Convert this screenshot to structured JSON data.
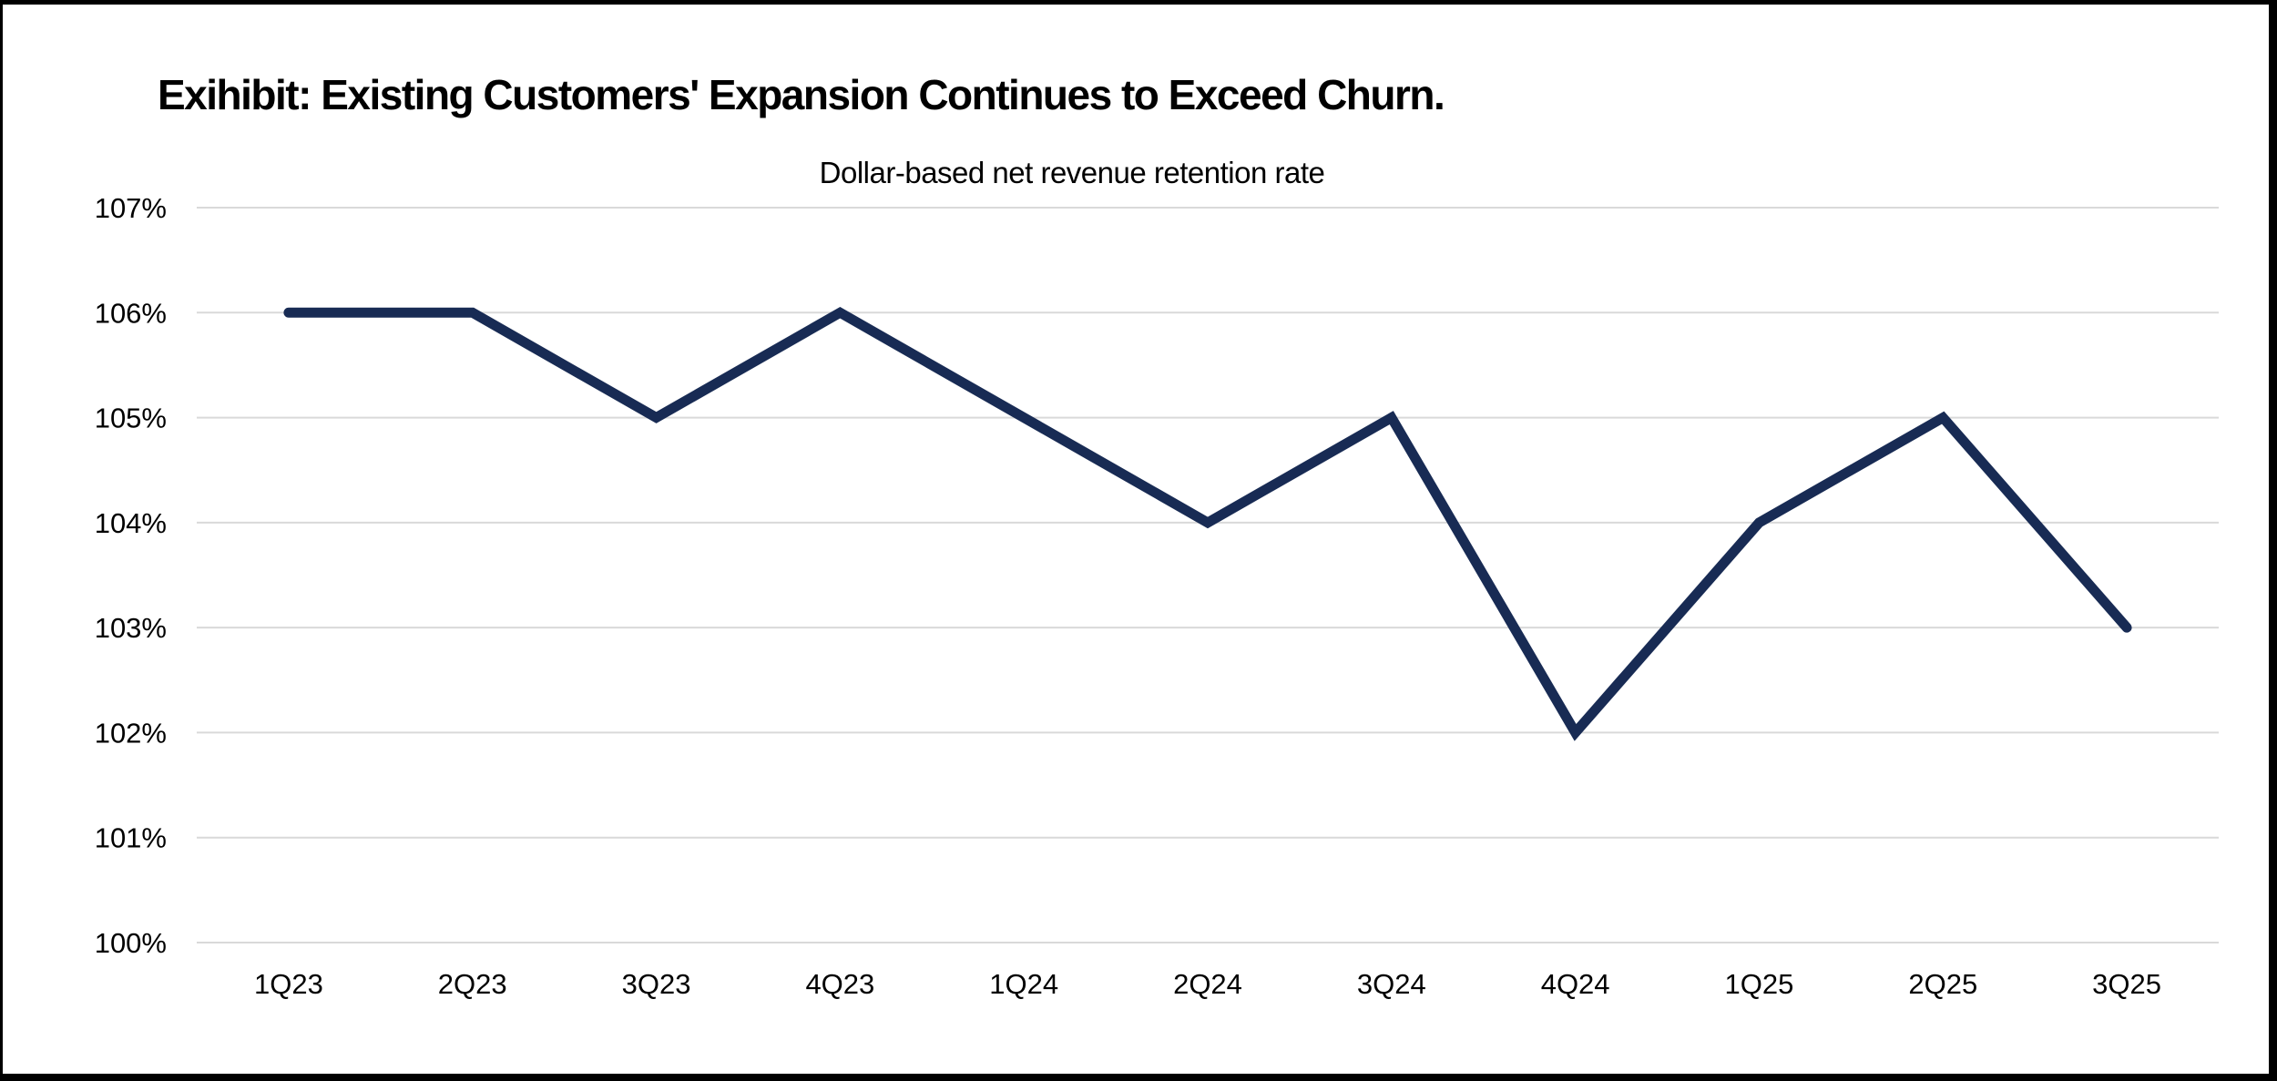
{
  "frame": {
    "background": "#FFFFFF",
    "border_color": "#000000"
  },
  "header": {
    "title": "Exihibit: Existing Customers' Expansion Continues to Exceed Churn.",
    "subtitle": "Dollar-based net revenue retention rate"
  },
  "chart_data": {
    "type": "line",
    "title": "Exihibit: Existing Customers' Expansion Continues to Exceed Churn.",
    "subtitle": "Dollar-based net revenue retention rate",
    "categories": [
      "1Q23",
      "2Q23",
      "3Q23",
      "4Q23",
      "1Q24",
      "2Q24",
      "3Q24",
      "4Q24",
      "1Q25",
      "2Q25",
      "3Q25"
    ],
    "series": [
      {
        "name": "Dollar-based net revenue retention rate",
        "values": [
          106,
          106,
          105,
          106,
          105,
          104,
          105,
          102,
          104,
          105,
          103
        ],
        "unit": "%",
        "color": "#182B54"
      }
    ],
    "xlabel": "",
    "ylabel": "",
    "ylim": [
      100,
      107
    ],
    "ytick_step": 1,
    "ytick_labels": [
      "100%",
      "101%",
      "102%",
      "103%",
      "104%",
      "105%",
      "106%",
      "107%"
    ],
    "grid": "horizontal",
    "gridline_color": "#D9D9D9",
    "legend": "none",
    "line_width": 11,
    "axis_label_color": "#000000"
  }
}
